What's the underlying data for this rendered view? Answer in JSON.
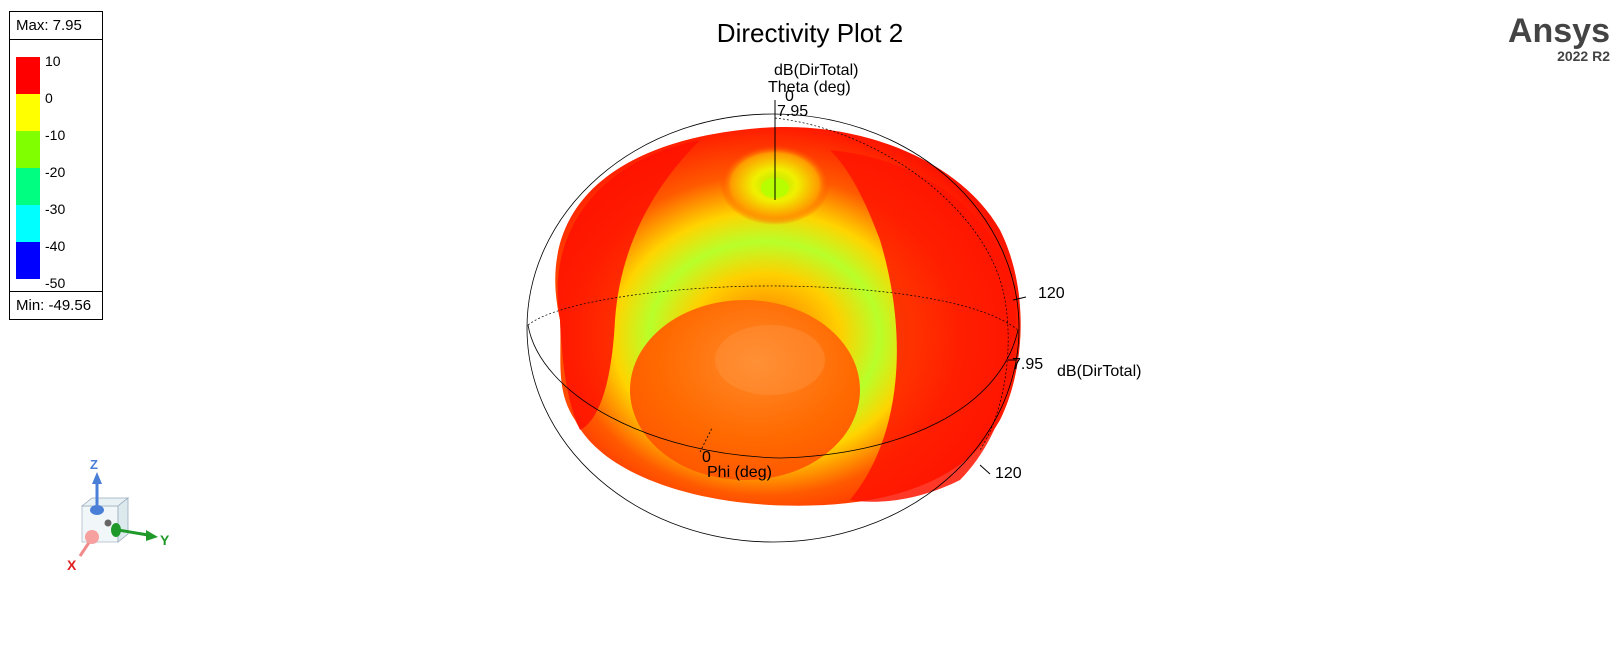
{
  "plot": {
    "title": "Directivity Plot 2",
    "brand_name": "Ansys",
    "brand_version": "2022 R2"
  },
  "legend": {
    "max_label": "Max: 7.95",
    "min_label": "Min: -49.56",
    "ticks": [
      "10",
      "0",
      "-10",
      "-20",
      "-30",
      "-40",
      "-50"
    ],
    "colors": [
      "#ff0000",
      "#ffff00",
      "#80ff00",
      "#00ff80",
      "#00ffff",
      "#0000ff"
    ]
  },
  "axes": {
    "theta_quantity": "dB(DirTotal)",
    "theta_label": "Theta (deg)",
    "theta_zero": "0",
    "theta_value": "7.95",
    "ring_120_upper": "120",
    "ring_value": "7.95",
    "ring_quantity": "dB(DirTotal)",
    "ring_120_lower": "120",
    "phi_zero": "0",
    "phi_label": "Phi (deg)"
  },
  "triad": {
    "z_label": "Z",
    "y_label": "Y",
    "x_label": "X"
  }
}
